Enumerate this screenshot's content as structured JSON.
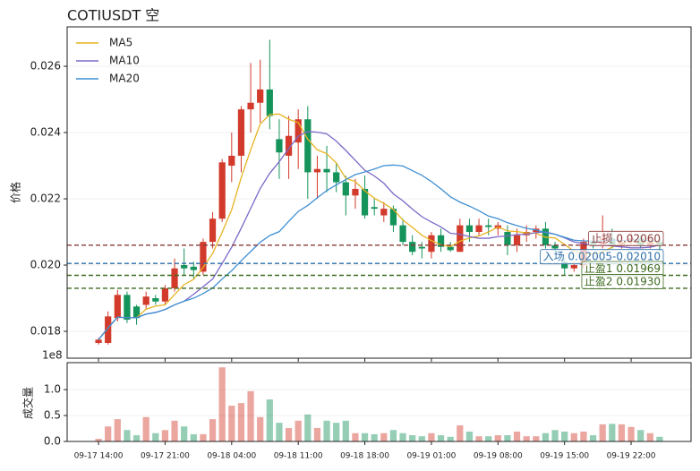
{
  "chart_data": {
    "type": "candlestick",
    "title": "COTIUSDT  空",
    "ylabel": "价格",
    "x": [
      0,
      1,
      2,
      3,
      4,
      5,
      6,
      7,
      8,
      9,
      10,
      11,
      12,
      13,
      14,
      15,
      16,
      17,
      18,
      19,
      20,
      21,
      22,
      23,
      24,
      25,
      26,
      27,
      28,
      29,
      30,
      31,
      32,
      33,
      34,
      35,
      36,
      37,
      38,
      39,
      40,
      41,
      42,
      43,
      44,
      45,
      46,
      47,
      48,
      49,
      50,
      51,
      52,
      53,
      54,
      55,
      56,
      57,
      58,
      59
    ],
    "open": [
      0.01765,
      0.01765,
      0.0184,
      0.0191,
      0.01875,
      0.0188,
      0.019,
      0.0189,
      0.0193,
      0.02,
      0.01995,
      0.0198,
      0.0207,
      0.0214,
      0.023,
      0.0233,
      0.0247,
      0.0249,
      0.0253,
      0.0238,
      0.0233,
      0.0237,
      0.0244,
      0.0228,
      0.0229,
      0.0228,
      0.0225,
      0.0221,
      0.0223,
      0.02175,
      0.0215,
      0.0217,
      0.0212,
      0.0207,
      0.02055,
      0.0204,
      0.0209,
      0.02055,
      0.0204,
      0.0212,
      0.021,
      0.0212,
      0.0211,
      0.021,
      0.0206,
      0.0209,
      0.021,
      0.0211,
      0.0206,
      0.0201,
      0.0199,
      0.02,
      0.0207,
      0.0206,
      0.0208,
      0.0206,
      0.0207,
      0.0208,
      0.0206,
      0.0207
    ],
    "high": [
      0.0178,
      0.0186,
      0.01925,
      0.0192,
      0.0188,
      0.0192,
      0.0191,
      0.0194,
      0.0202,
      0.0205,
      0.0201,
      0.0208,
      0.0216,
      0.0232,
      0.024,
      0.0248,
      0.0261,
      0.0262,
      0.0268,
      0.0244,
      0.0245,
      0.0247,
      0.0248,
      0.0233,
      0.0236,
      0.0231,
      0.0227,
      0.0226,
      0.0227,
      0.022,
      0.0219,
      0.0218,
      0.0214,
      0.0209,
      0.0207,
      0.021,
      0.0211,
      0.0207,
      0.0214,
      0.0214,
      0.0214,
      0.0214,
      0.0213,
      0.0212,
      0.0211,
      0.0212,
      0.0212,
      0.0213,
      0.0207,
      0.0202,
      0.0201,
      0.0208,
      0.0209,
      0.0215,
      0.0211,
      0.0209,
      0.021,
      0.0209,
      0.0208,
      0.0208
    ],
    "low": [
      0.0176,
      0.0176,
      0.0183,
      0.01825,
      0.0182,
      0.01865,
      0.0188,
      0.0188,
      0.0192,
      0.0197,
      0.0196,
      0.0197,
      0.0205,
      0.0213,
      0.0225,
      0.0228,
      0.024,
      0.0243,
      0.0241,
      0.0226,
      0.0226,
      0.0229,
      0.022,
      0.022,
      0.0222,
      0.0222,
      0.0215,
      0.0217,
      0.0214,
      0.0215,
      0.0213,
      0.021,
      0.0206,
      0.0203,
      0.0202,
      0.0202,
      0.0204,
      0.0204,
      0.0204,
      0.0207,
      0.0209,
      0.0209,
      0.0209,
      0.0203,
      0.0204,
      0.0207,
      0.0208,
      0.0205,
      0.0204,
      0.0197,
      0.0198,
      0.0199,
      0.0205,
      0.0205,
      0.0205,
      0.0205,
      0.0206,
      0.0205,
      0.0205,
      0.0204
    ],
    "close": [
      0.01775,
      0.01845,
      0.0191,
      0.01835,
      0.0184,
      0.01905,
      0.0189,
      0.0193,
      0.0199,
      0.0199,
      0.01985,
      0.0207,
      0.0214,
      0.0231,
      0.0233,
      0.0247,
      0.0249,
      0.0253,
      0.0245,
      0.0234,
      0.0239,
      0.0244,
      0.0228,
      0.0229,
      0.0228,
      0.0225,
      0.0221,
      0.0223,
      0.0215,
      0.0217,
      0.0217,
      0.0212,
      0.0207,
      0.0204,
      0.0205,
      0.0209,
      0.02055,
      0.02045,
      0.0212,
      0.021,
      0.0212,
      0.02115,
      0.0212,
      0.0206,
      0.0209,
      0.021,
      0.0211,
      0.0206,
      0.0205,
      0.0199,
      0.02,
      0.0207,
      0.0206,
      0.0208,
      0.0206,
      0.0207,
      0.0208,
      0.0206,
      0.0207,
      0.0206
    ],
    "up_color": "#d23a2b",
    "down_color": "#14935a",
    "series": [
      {
        "name": "MA5",
        "color": "#e6b422",
        "values": [
          0.01775,
          0.0181,
          0.01843,
          0.01841,
          0.01841,
          0.01867,
          0.01876,
          0.0188,
          0.01911,
          0.01941,
          0.01957,
          0.01993,
          0.02035,
          0.02099,
          0.02167,
          0.02264,
          0.02348,
          0.02426,
          0.02454,
          0.02456,
          0.0244,
          0.0243,
          0.0238,
          0.02348,
          0.02336,
          0.02308,
          0.02262,
          0.02252,
          0.02224,
          0.02202,
          0.02186,
          0.02168,
          0.02136,
          0.02114,
          0.0209,
          0.02074,
          0.02061,
          0.02056,
          0.02072,
          0.02082,
          0.02088,
          0.021,
          0.02115,
          0.02103,
          0.02101,
          0.02097,
          0.02096,
          0.02084,
          0.02082,
          0.02062,
          0.02042,
          0.02034,
          0.02034,
          0.0204,
          0.02054,
          0.02068,
          0.0207,
          0.0207,
          0.02068,
          0.02068
        ]
      },
      {
        "name": "MA10",
        "color": "#7b68c8",
        "values": [
          0.01775,
          0.0181,
          0.01843,
          0.01841,
          0.01841,
          0.01852,
          0.01857,
          0.01866,
          0.0188,
          0.01891,
          0.01912,
          0.01935,
          0.01958,
          0.02005,
          0.02054,
          0.02111,
          0.02171,
          0.02231,
          0.02277,
          0.02312,
          0.02352,
          0.02389,
          0.02403,
          0.02401,
          0.02396,
          0.02374,
          0.02346,
          0.02316,
          0.02286,
          0.02269,
          0.02247,
          0.02215,
          0.02194,
          0.02169,
          0.02146,
          0.0213,
          0.02115,
          0.02096,
          0.02093,
          0.02086,
          0.02081,
          0.02081,
          0.02086,
          0.02088,
          0.02092,
          0.02093,
          0.02098,
          0.021,
          0.02093,
          0.02082,
          0.0207,
          0.02065,
          0.02059,
          0.02061,
          0.02058,
          0.02055,
          0.02052,
          0.02052,
          0.02054,
          0.02061
        ]
      },
      {
        "name": "MA20",
        "color": "#3f8fd2",
        "values": [
          0.01775,
          0.0181,
          0.01843,
          0.01841,
          0.01841,
          0.01852,
          0.01857,
          0.01866,
          0.0188,
          0.01891,
          0.019,
          0.01914,
          0.01931,
          0.01958,
          0.01983,
          0.02013,
          0.02041,
          0.02069,
          0.02089,
          0.02101,
          0.02132,
          0.02162,
          0.0218,
          0.02203,
          0.02225,
          0.02242,
          0.02258,
          0.02273,
          0.02281,
          0.0229,
          0.023,
          0.02302,
          0.02299,
          0.02285,
          0.02271,
          0.02252,
          0.0223,
          0.02206,
          0.0219,
          0.02178,
          0.02164,
          0.02148,
          0.0214,
          0.02128,
          0.02119,
          0.02111,
          0.02106,
          0.02098,
          0.02093,
          0.02084,
          0.02075,
          0.02073,
          0.02072,
          0.02074,
          0.02075,
          0.02074,
          0.02075,
          0.02076,
          0.02073,
          0.02071
        ]
      }
    ],
    "levels": [
      {
        "label": "止损 0.02060",
        "value": 0.0206,
        "color": "#8b3a3a"
      },
      {
        "label": "入场 0.02005-0.02010",
        "value": 0.02005,
        "color": "#2e6fa8"
      },
      {
        "label": "止盈1 0.01969",
        "value": 0.01969,
        "color": "#3d6b1f"
      },
      {
        "label": "止盈2 0.01930",
        "value": 0.0193,
        "color": "#3d6b1f"
      }
    ],
    "ylim": [
      0.01719,
      0.02719
    ],
    "yticks": [
      0.018,
      {
        "value": 0.02,
        "label": "0.020"
      },
      0.022,
      0.024,
      0.026
    ],
    "xlim": [
      -3.3,
      62.3
    ],
    "xticks": [
      {
        "value": 0,
        "label": "09-17 14:00"
      },
      {
        "value": 7,
        "label": "09-17 21:00"
      },
      {
        "value": 14,
        "label": "09-18 04:00"
      },
      {
        "value": 21,
        "label": "09-18 11:00"
      },
      {
        "value": 28,
        "label": "09-18 18:00"
      },
      {
        "value": 35,
        "label": "09-19 01:00"
      },
      {
        "value": 42,
        "label": "09-19 08:00"
      },
      {
        "value": 49,
        "label": "09-19 15:00"
      },
      {
        "value": 56,
        "label": "09-19 22:00"
      }
    ],
    "grid": true,
    "legend": "upper left",
    "volume_label": "成交量",
    "volume_offset": "1e8",
    "volume": [
      0.05,
      0.29,
      0.43,
      0.22,
      0.12,
      0.47,
      0.16,
      0.22,
      0.4,
      0.29,
      0.14,
      0.14,
      0.43,
      1.43,
      0.69,
      0.74,
      0.97,
      0.47,
      0.81,
      0.36,
      0.26,
      0.4,
      0.52,
      0.26,
      0.4,
      0.36,
      0.4,
      0.16,
      0.16,
      0.14,
      0.16,
      0.22,
      0.16,
      0.12,
      0.1,
      0.16,
      0.12,
      0.09,
      0.31,
      0.19,
      0.1,
      0.1,
      0.12,
      0.12,
      0.19,
      0.1,
      0.1,
      0.16,
      0.22,
      0.19,
      0.16,
      0.19,
      0.12,
      0.33,
      0.34,
      0.33,
      0.28,
      0.22,
      0.16,
      0.09
    ],
    "volume_ylim": [
      0,
      1.52
    ],
    "volume_yticks": [
      {
        "value": 0,
        "label": "0.0"
      },
      0.5,
      {
        "value": 1,
        "label": "1.0"
      }
    ]
  }
}
